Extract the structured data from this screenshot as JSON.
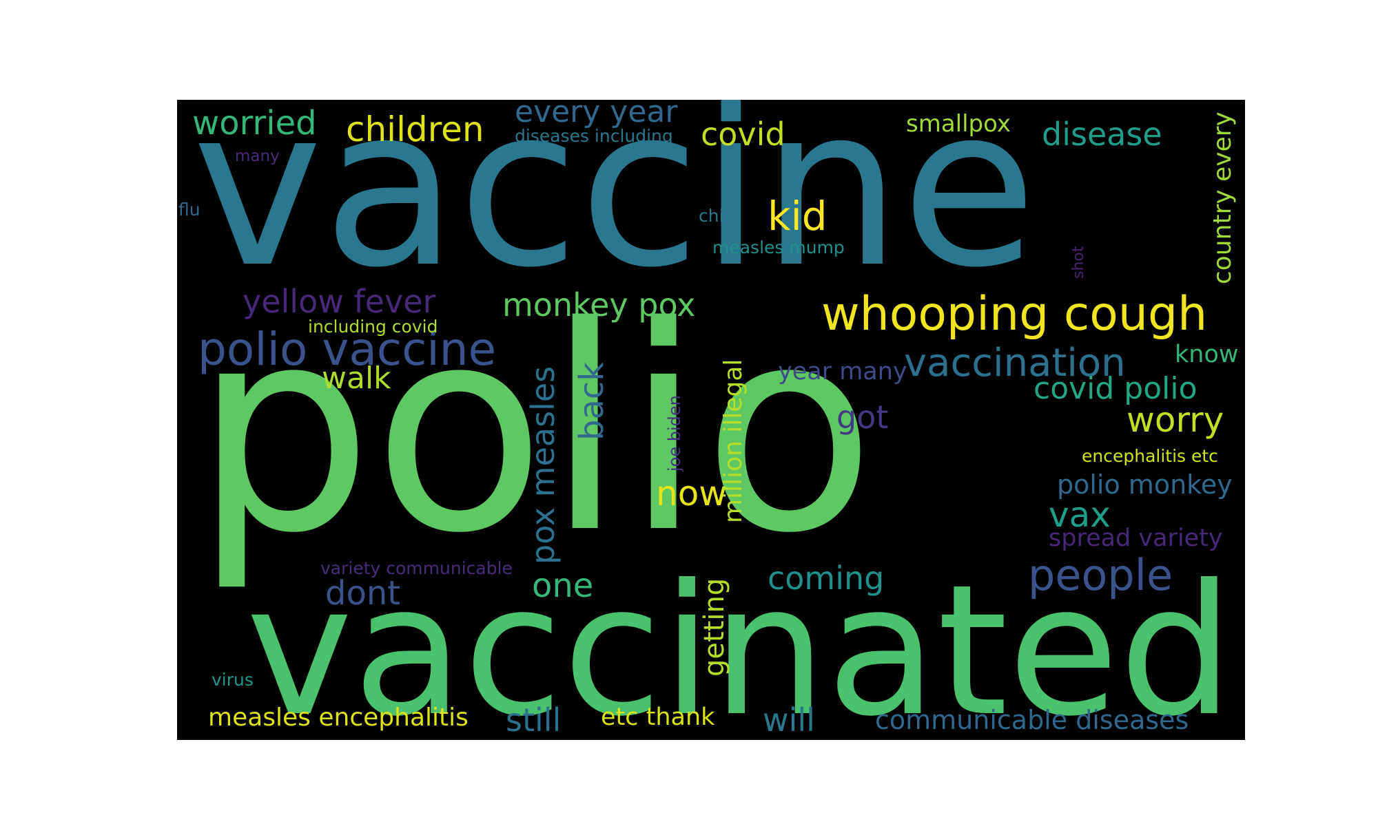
{
  "colors": {
    "background": "#000000",
    "page": "#ffffff"
  },
  "words": [
    {
      "text": "vaccine",
      "color": "#2a788e"
    },
    {
      "text": "polio",
      "color": "#5ec962"
    },
    {
      "text": "vaccinated",
      "color": "#4ac16d"
    },
    {
      "text": "whooping cough",
      "color": "#f0e51f"
    },
    {
      "text": "polio vaccine",
      "color": "#3b528b"
    },
    {
      "text": "vaccination",
      "color": "#2c728e"
    },
    {
      "text": "people",
      "color": "#3b528b"
    },
    {
      "text": "yellow fever",
      "color": "#482878"
    },
    {
      "text": "monkey pox",
      "color": "#5ec962"
    },
    {
      "text": "worried",
      "color": "#35b779"
    },
    {
      "text": "children",
      "color": "#dde318"
    },
    {
      "text": "every year",
      "color": "#31688e"
    },
    {
      "text": "covid",
      "color": "#c2df23"
    },
    {
      "text": "disease",
      "color": "#1f9e89"
    },
    {
      "text": "smallpox",
      "color": "#a0da39"
    },
    {
      "text": "diseases including",
      "color": "#2a788e"
    },
    {
      "text": "kid",
      "color": "#fde725"
    },
    {
      "text": "child",
      "color": "#2a788e"
    },
    {
      "text": "measles mump",
      "color": "#21918c"
    },
    {
      "text": "many",
      "color": "#472c7a"
    },
    {
      "text": "flu",
      "color": "#31688e"
    },
    {
      "text": "shot",
      "color": "#482475"
    },
    {
      "text": "country every",
      "color": "#a0da39"
    },
    {
      "text": "including covid",
      "color": "#addc30"
    },
    {
      "text": "walk",
      "color": "#addc30"
    },
    {
      "text": "know",
      "color": "#35b779"
    },
    {
      "text": "covid polio",
      "color": "#22a884"
    },
    {
      "text": "year many",
      "color": "#3e4a89"
    },
    {
      "text": "worry",
      "color": "#c2df23"
    },
    {
      "text": "got",
      "color": "#443983"
    },
    {
      "text": "encephalitis etc",
      "color": "#d2e21b"
    },
    {
      "text": "polio monkey",
      "color": "#31688e"
    },
    {
      "text": "vax",
      "color": "#1f9e89"
    },
    {
      "text": "spread variety",
      "color": "#482878"
    },
    {
      "text": "now",
      "color": "#e5e419"
    },
    {
      "text": "one",
      "color": "#37b878"
    },
    {
      "text": "dont",
      "color": "#3b528b"
    },
    {
      "text": "coming",
      "color": "#21918c"
    },
    {
      "text": "variety communicable",
      "color": "#472d7b"
    },
    {
      "text": "virus",
      "color": "#1f988b"
    },
    {
      "text": "measles encephalitis",
      "color": "#dde318"
    },
    {
      "text": "still",
      "color": "#2c728e"
    },
    {
      "text": "etc thank",
      "color": "#d8e219"
    },
    {
      "text": "will",
      "color": "#2a788e"
    },
    {
      "text": "communicable diseases",
      "color": "#31688e"
    },
    {
      "text": "back",
      "color": "#31688e"
    },
    {
      "text": "pox measles",
      "color": "#2c728e"
    },
    {
      "text": "million illegal",
      "color": "#b5de2b"
    },
    {
      "text": "joe biden",
      "color": "#46327e"
    },
    {
      "text": "getting",
      "color": "#b5de2b"
    }
  ]
}
